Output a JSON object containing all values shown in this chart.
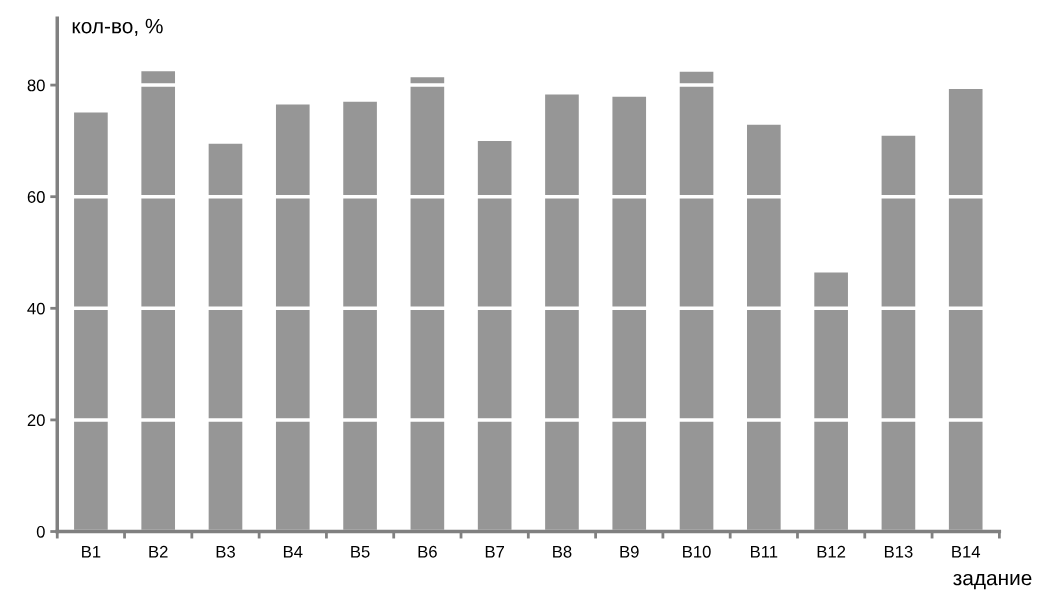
{
  "chart_data": {
    "type": "bar",
    "ylabel": "кол-во, %",
    "xlabel": "задание",
    "categories": [
      "B1",
      "B2",
      "B3",
      "B4",
      "B5",
      "B6",
      "B7",
      "B8",
      "B9",
      "B10",
      "B11",
      "B12",
      "B13",
      "B14"
    ],
    "values": [
      75.1,
      82.5,
      69.5,
      76.5,
      77,
      81.4,
      70,
      78.3,
      77.9,
      82.4,
      72.9,
      46.4,
      70.9,
      79.3
    ],
    "color": "#969696",
    "ylim": [
      0,
      92
    ],
    "yticks": [
      0,
      20,
      40,
      60,
      80
    ],
    "grid": "y",
    "legend": false
  }
}
